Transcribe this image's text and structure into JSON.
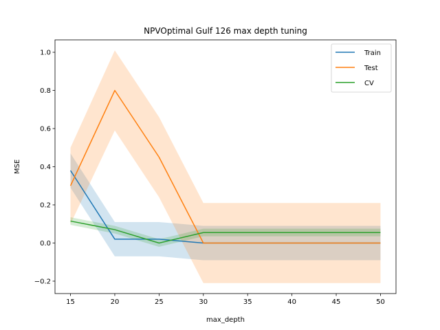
{
  "chart_data": {
    "type": "line",
    "title": "NPVOptimal Gulf 126 max depth tuning",
    "xlabel": "max_depth",
    "ylabel": "MSE",
    "x": [
      15,
      20,
      25,
      30,
      35,
      40,
      45,
      50
    ],
    "xlim": [
      13.25,
      51.75
    ],
    "ylim": [
      -0.265,
      1.065
    ],
    "xticks": [
      "15",
      "20",
      "25",
      "30",
      "35",
      "40",
      "45",
      "50"
    ],
    "yticks": [
      -0.2,
      0.0,
      0.2,
      0.4,
      0.6,
      0.8,
      1.0
    ],
    "ytick_labels": [
      "−0.2",
      "0.0",
      "0.2",
      "0.4",
      "0.6",
      "0.8",
      "1.0"
    ],
    "grid": false,
    "legend_position": "top-right",
    "series": [
      {
        "name": "Train",
        "color": "#1f77b4",
        "values": [
          0.38,
          0.02,
          0.02,
          0.0,
          0.0,
          0.0,
          0.0,
          0.0
        ],
        "band_lower": [
          0.29,
          -0.07,
          -0.07,
          -0.09,
          -0.09,
          -0.09,
          -0.09,
          -0.09
        ],
        "band_upper": [
          0.47,
          0.11,
          0.11,
          0.09,
          0.09,
          0.09,
          0.09,
          0.09
        ]
      },
      {
        "name": "Test",
        "color": "#ff7f0e",
        "values": [
          0.3,
          0.8,
          0.45,
          0.0,
          0.0,
          0.0,
          0.0,
          0.0
        ],
        "band_lower": [
          0.1,
          0.59,
          0.24,
          -0.21,
          -0.21,
          -0.21,
          -0.21,
          -0.21
        ],
        "band_upper": [
          0.5,
          1.01,
          0.66,
          0.21,
          0.21,
          0.21,
          0.21,
          0.21
        ]
      },
      {
        "name": "CV",
        "color": "#2ca02c",
        "values": [
          0.115,
          0.07,
          0.0,
          0.055,
          0.055,
          0.055,
          0.055,
          0.055
        ],
        "band_lower": [
          0.095,
          0.05,
          -0.02,
          0.035,
          0.035,
          0.035,
          0.035,
          0.035
        ],
        "band_upper": [
          0.135,
          0.09,
          0.02,
          0.075,
          0.075,
          0.075,
          0.075,
          0.075
        ]
      }
    ]
  }
}
